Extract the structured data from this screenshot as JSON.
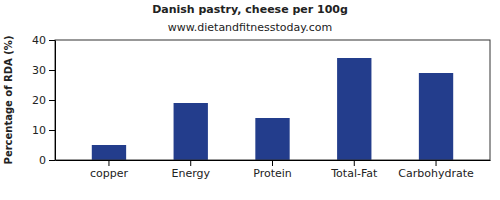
{
  "chart_data": {
    "type": "bar",
    "title": "Danish pastry, cheese per 100g",
    "subtitle": "www.dietandfitnesstoday.com",
    "y_label": "Percentage of RDA (%)",
    "categories": [
      "copper",
      "Energy",
      "Protein",
      "Total-Fat",
      "Carbohydrate"
    ],
    "values": [
      5,
      19,
      14,
      34,
      29
    ],
    "color": "#233d8c",
    "ylim": [
      0,
      40
    ],
    "yticks": [
      0,
      10,
      20,
      30,
      40
    ],
    "grid": false
  }
}
